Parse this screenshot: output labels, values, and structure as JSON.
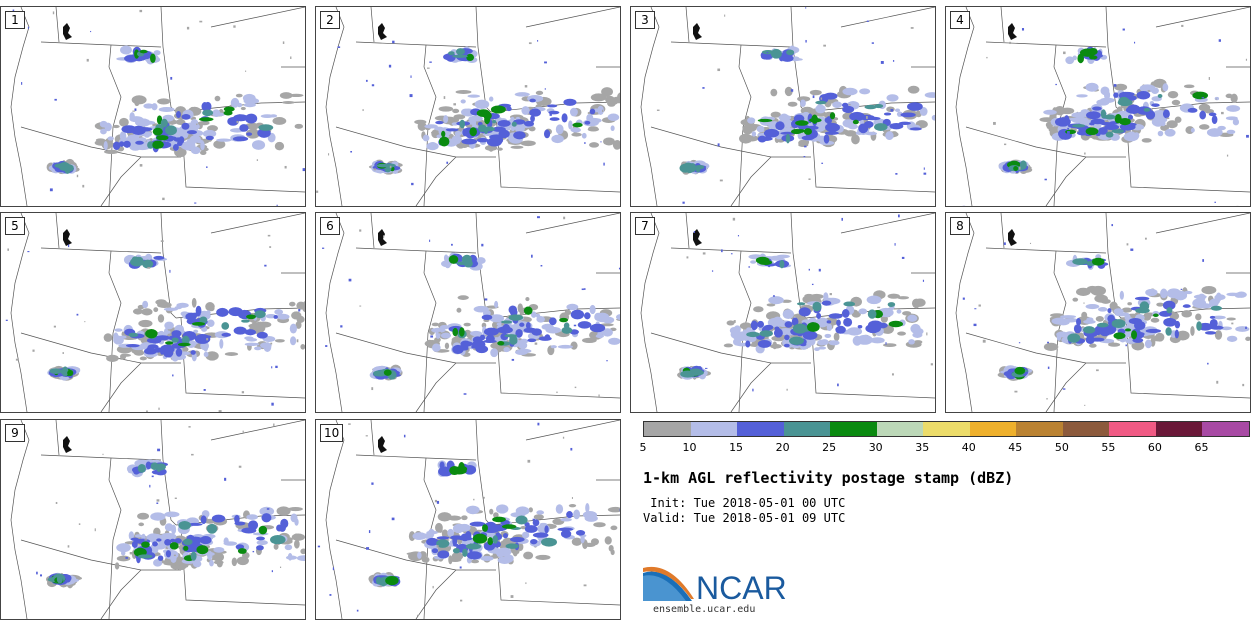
{
  "panels": [
    {
      "label": "1"
    },
    {
      "label": "2"
    },
    {
      "label": "3"
    },
    {
      "label": "4"
    },
    {
      "label": "5"
    },
    {
      "label": "6"
    },
    {
      "label": "7"
    },
    {
      "label": "8"
    },
    {
      "label": "9"
    },
    {
      "label": "10"
    }
  ],
  "colorbar": {
    "ticks": [
      "5",
      "10",
      "15",
      "20",
      "25",
      "30",
      "35",
      "40",
      "45",
      "50",
      "55",
      "60",
      "65"
    ],
    "colors": [
      "#a6a6a6",
      "#b4bde8",
      "#5460d8",
      "#4a9494",
      "#0a8a10",
      "#bcd8b8",
      "#ecdc6a",
      "#eeb02c",
      "#ba8232",
      "#8c5a3c",
      "#f05a84",
      "#6a1838",
      "#a84aa4"
    ]
  },
  "title": "1-km AGL reflectivity postage stamp (dBZ)",
  "init": " Init: Tue 2018-05-01 00 UTC",
  "valid": "Valid: Tue 2018-05-01 09 UTC",
  "logo": {
    "text": "NCAR",
    "url": "ensemble.ucar.edu"
  }
}
